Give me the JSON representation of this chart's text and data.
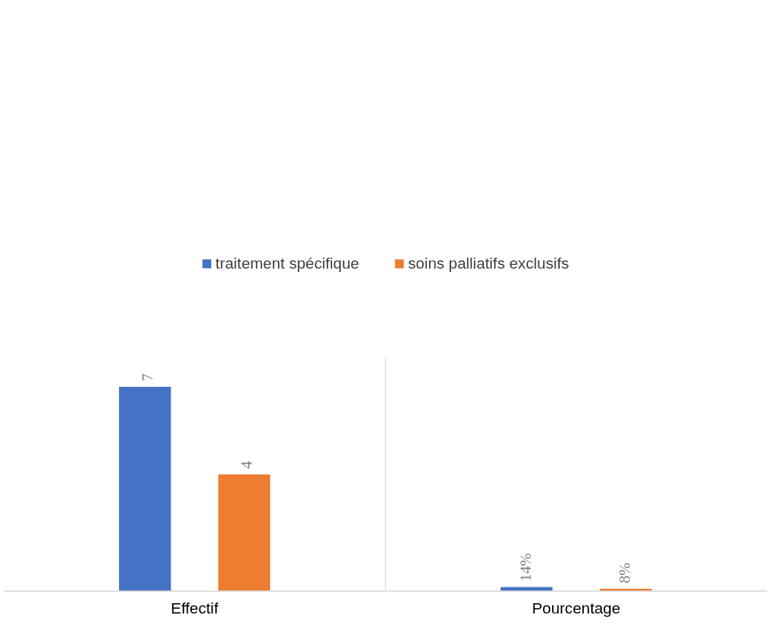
{
  "chart_data": {
    "type": "bar",
    "categories": [
      "Effectif",
      "Pourcentage"
    ],
    "series": [
      {
        "name": "traitement spécifique",
        "color": "#4472c4",
        "values": [
          7,
          0.14
        ],
        "value_labels": [
          "7",
          "14%"
        ]
      },
      {
        "name": "soins palliatifs exclusifs",
        "color": "#ed7d31",
        "values": [
          4,
          0.08
        ],
        "value_labels": [
          "4",
          "8%"
        ]
      }
    ],
    "ylim": [
      0,
      8
    ],
    "tick_labels": "x",
    "grid": "x",
    "legend": "top"
  }
}
